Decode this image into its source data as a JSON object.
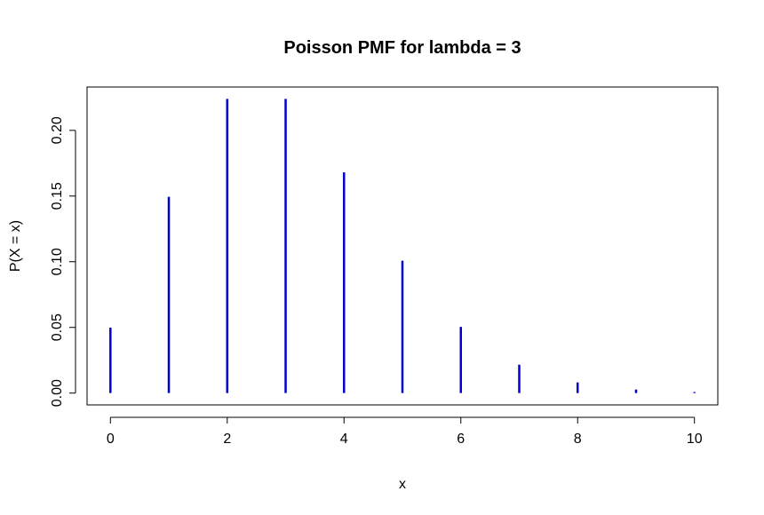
{
  "chart_data": {
    "type": "bar",
    "style": "histogram-spikes",
    "title": "Poisson PMF for lambda = 3",
    "xlabel": "x",
    "ylabel": "P(X = x)",
    "x": [
      0,
      1,
      2,
      3,
      4,
      5,
      6,
      7,
      8,
      9,
      10
    ],
    "values": [
      0.0498,
      0.1494,
      0.224,
      0.224,
      0.168,
      0.1008,
      0.0504,
      0.0216,
      0.0081,
      0.0027,
      0.0008
    ],
    "xticks": [
      0,
      2,
      4,
      6,
      8,
      10
    ],
    "xtick_labels": [
      "0",
      "2",
      "4",
      "6",
      "8",
      "10"
    ],
    "yticks": [
      0,
      0.05,
      0.1,
      0.15,
      0.2
    ],
    "ytick_labels": [
      "0.00",
      "0.05",
      "0.10",
      "0.15",
      "0.20"
    ],
    "xlim": [
      -0.4,
      10.4
    ],
    "ylim": [
      -0.009,
      0.233
    ],
    "grid": false,
    "legend": "none",
    "color": "#0000CD"
  }
}
